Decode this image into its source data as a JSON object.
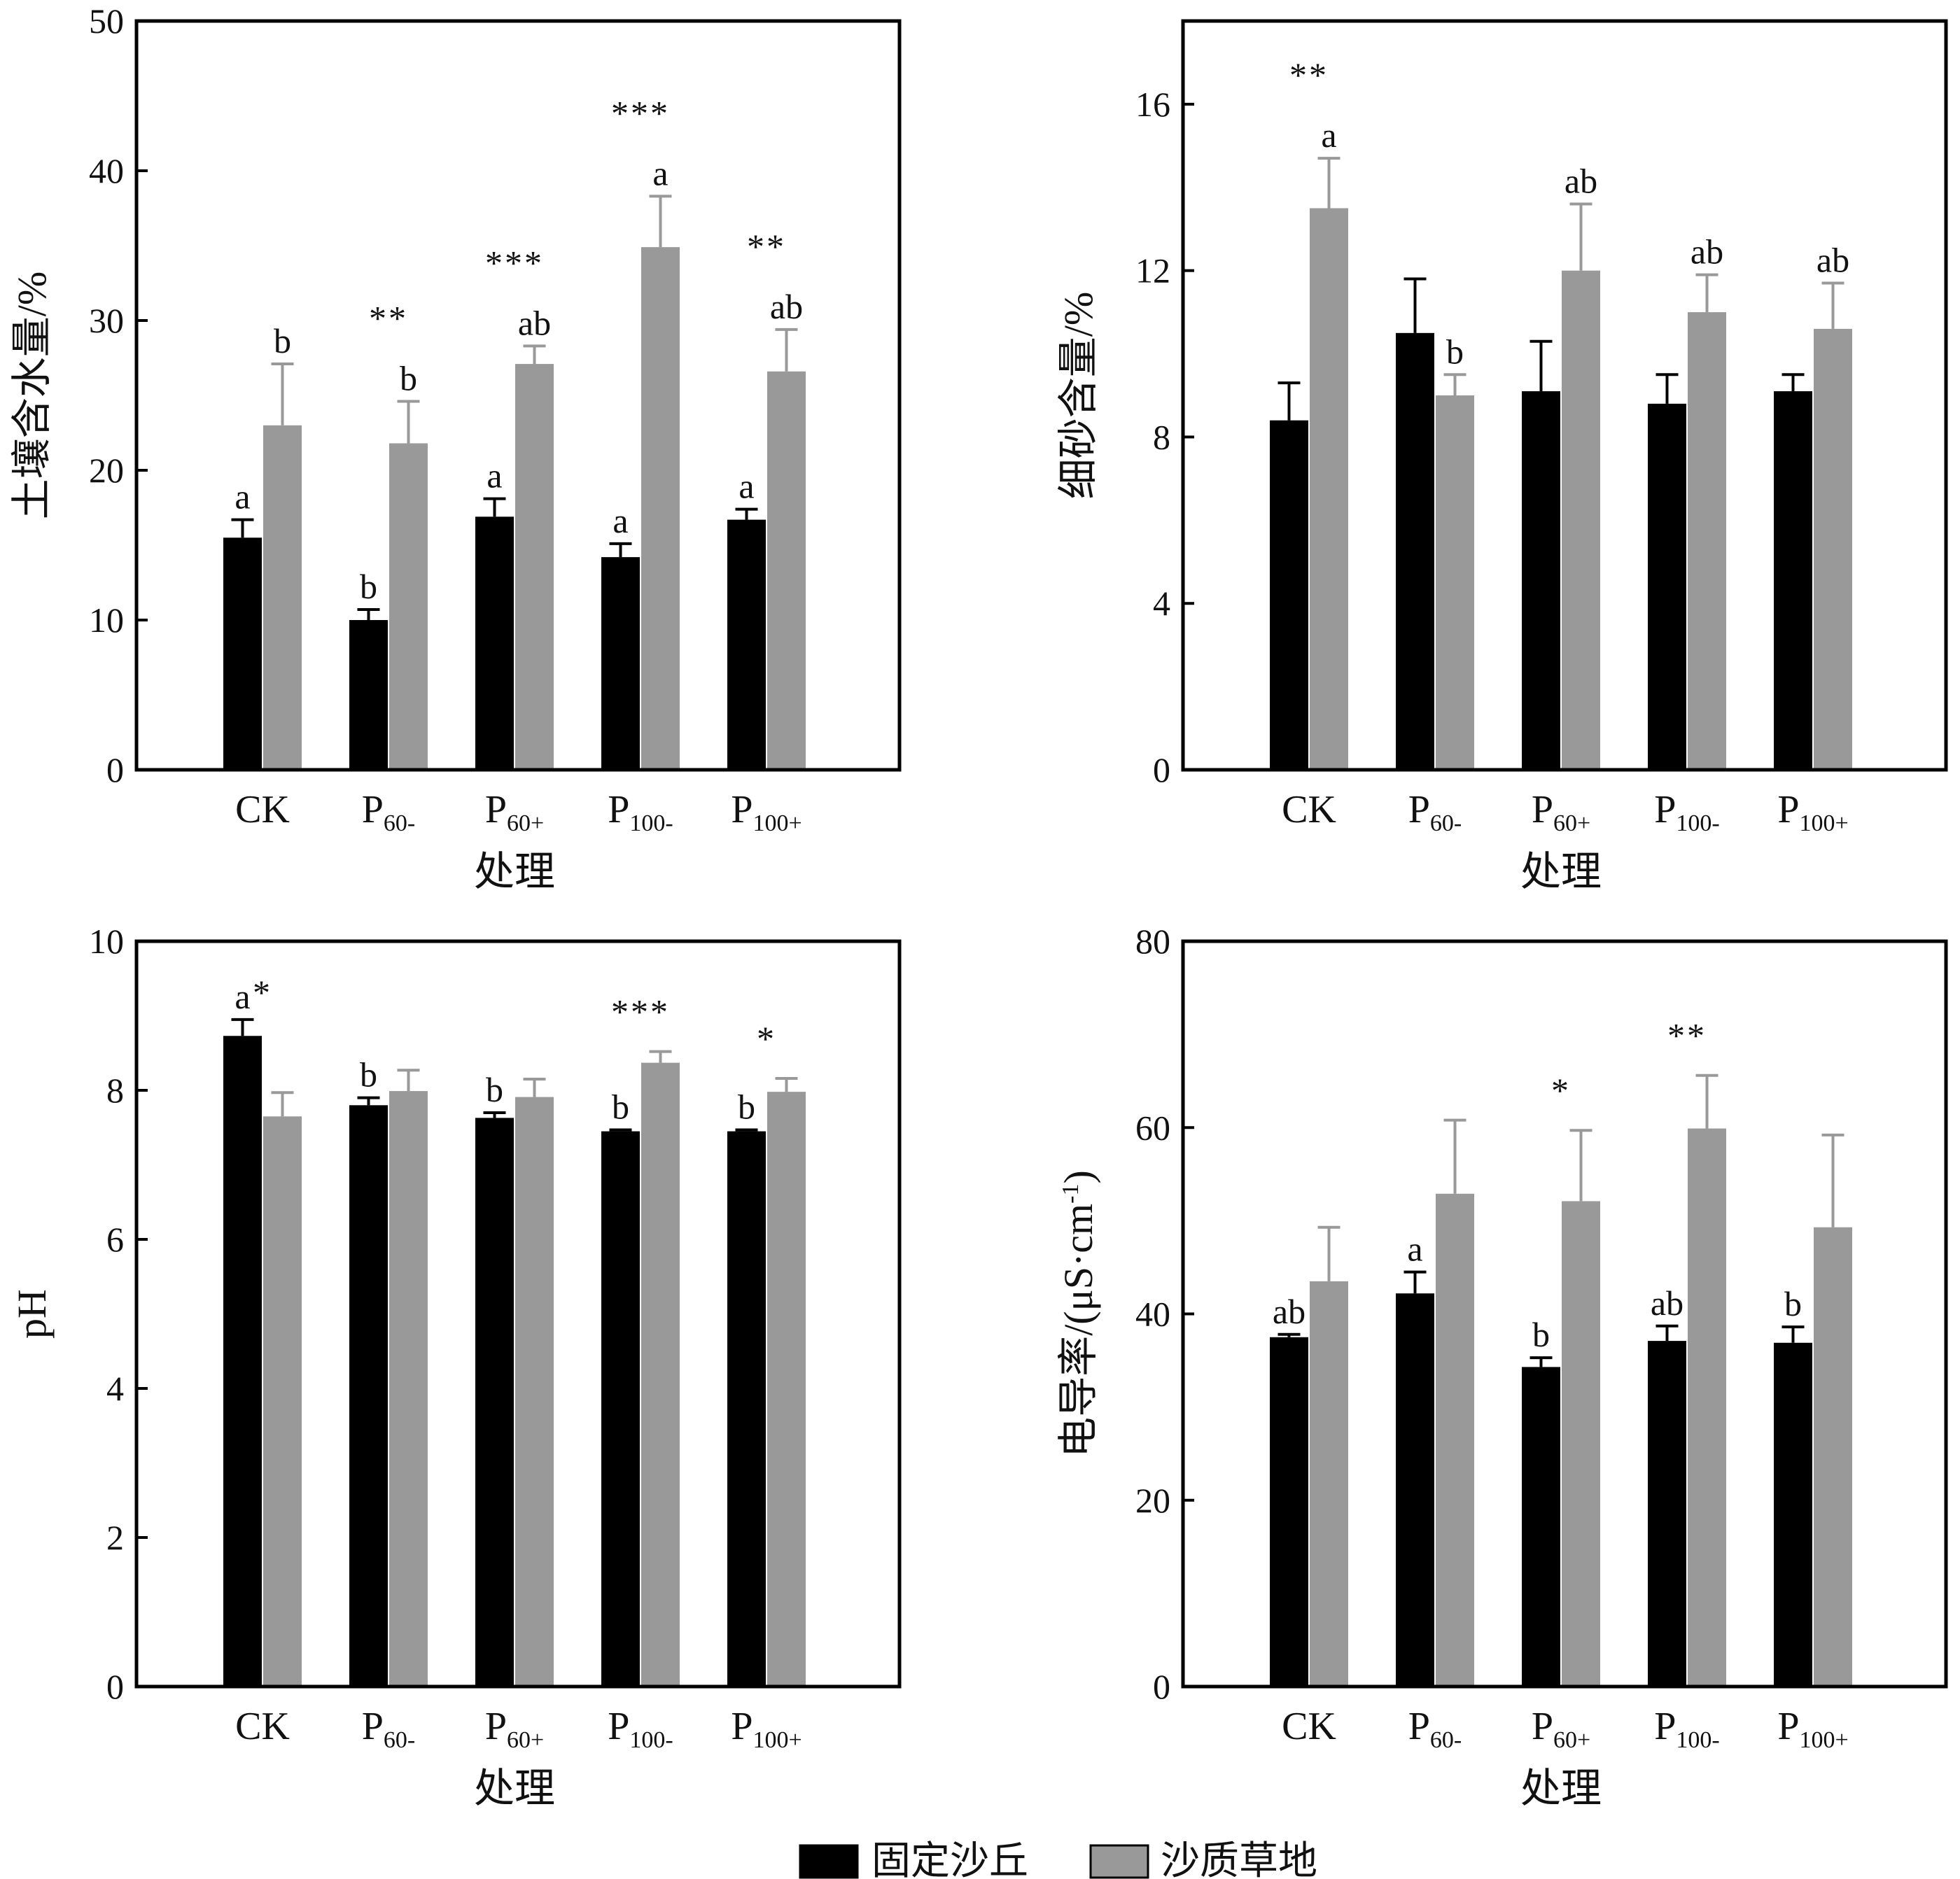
{
  "chart_data": [
    {
      "type": "bar",
      "ylabel": "土壤含水量/%",
      "xlabel": "处理",
      "ylim": [
        0,
        50
      ],
      "yticks": [
        0,
        10,
        20,
        30,
        40,
        50
      ],
      "categories": [
        "CK",
        "P60-",
        "P60+",
        "P100-",
        "P100+"
      ],
      "series": [
        {
          "name": "固定沙丘",
          "values": [
            15.5,
            10.0,
            16.9,
            14.2,
            16.7
          ],
          "errors": [
            1.2,
            0.7,
            1.2,
            0.9,
            0.7
          ],
          "letters": [
            "a",
            "b",
            "a",
            "a",
            "a"
          ]
        },
        {
          "name": "沙质草地",
          "values": [
            23.0,
            21.8,
            27.1,
            34.9,
            26.6
          ],
          "errors": [
            4.1,
            2.8,
            1.2,
            3.4,
            2.8
          ],
          "letters": [
            "b",
            "b",
            "ab",
            "a",
            "ab"
          ]
        }
      ],
      "stars": [
        "",
        "**",
        "***",
        "***",
        "**"
      ]
    },
    {
      "type": "bar",
      "ylabel": "细砂含量/%",
      "xlabel": "处理",
      "ylim": [
        0,
        18
      ],
      "yticks": [
        0,
        4,
        8,
        12,
        16
      ],
      "categories": [
        "CK",
        "P60-",
        "P60+",
        "P100-",
        "P100+"
      ],
      "series": [
        {
          "name": "固定沙丘",
          "values": [
            8.4,
            10.5,
            9.1,
            8.8,
            9.1
          ],
          "errors": [
            0.9,
            1.3,
            1.2,
            0.7,
            0.4
          ],
          "letters": [
            "",
            "",
            "",
            "",
            ""
          ]
        },
        {
          "name": "沙质草地",
          "values": [
            13.5,
            9.0,
            12.0,
            11.0,
            10.6
          ],
          "errors": [
            1.2,
            0.5,
            1.6,
            0.9,
            1.1
          ],
          "letters": [
            "a",
            "b",
            "ab",
            "ab",
            "ab"
          ]
        }
      ],
      "stars": [
        "**",
        "",
        "",
        "",
        ""
      ]
    },
    {
      "type": "bar",
      "ylabel": "pH",
      "xlabel": "处理",
      "ylim": [
        0,
        10
      ],
      "yticks": [
        0,
        2,
        4,
        6,
        8,
        10
      ],
      "categories": [
        "CK",
        "P60-",
        "P60+",
        "P100-",
        "P100+"
      ],
      "series": [
        {
          "name": "固定沙丘",
          "values": [
            8.73,
            7.8,
            7.63,
            7.45,
            7.45
          ],
          "errors": [
            0.22,
            0.1,
            0.07,
            0.02,
            0.02
          ],
          "letters": [
            "a",
            "b",
            "b",
            "b",
            "b"
          ]
        },
        {
          "name": "沙质草地",
          "values": [
            7.65,
            7.99,
            7.91,
            8.37,
            7.98
          ],
          "errors": [
            0.32,
            0.28,
            0.24,
            0.15,
            0.18
          ],
          "letters": [
            "",
            "",
            "",
            "",
            ""
          ]
        }
      ],
      "stars": [
        "*",
        "",
        "",
        "***",
        "*"
      ]
    },
    {
      "type": "bar",
      "ylabel": "电导率/(μS·cm-1)",
      "xlabel": "处理",
      "ylim": [
        0,
        80
      ],
      "yticks": [
        0,
        20,
        40,
        60,
        80
      ],
      "categories": [
        "CK",
        "P60-",
        "P60+",
        "P100-",
        "P100+"
      ],
      "series": [
        {
          "name": "固定沙丘",
          "values": [
            37.5,
            42.2,
            34.3,
            37.1,
            36.9
          ],
          "errors": [
            0.3,
            2.3,
            1.0,
            1.6,
            1.7
          ],
          "letters": [
            "ab",
            "a",
            "b",
            "ab",
            "b"
          ]
        },
        {
          "name": "沙质草地",
          "values": [
            43.5,
            52.9,
            52.1,
            59.9,
            49.3
          ],
          "errors": [
            5.8,
            7.9,
            7.6,
            5.7,
            9.9
          ],
          "letters": [
            "",
            "",
            "",
            "",
            ""
          ]
        }
      ],
      "stars": [
        "",
        "",
        "*",
        "**",
        ""
      ]
    }
  ],
  "legend": {
    "items": [
      {
        "label": "固定沙丘",
        "color": "#000000"
      },
      {
        "label": "沙质草地",
        "color": "#999999"
      }
    ]
  },
  "colors": {
    "series1": "#000000",
    "series2": "#999999"
  }
}
